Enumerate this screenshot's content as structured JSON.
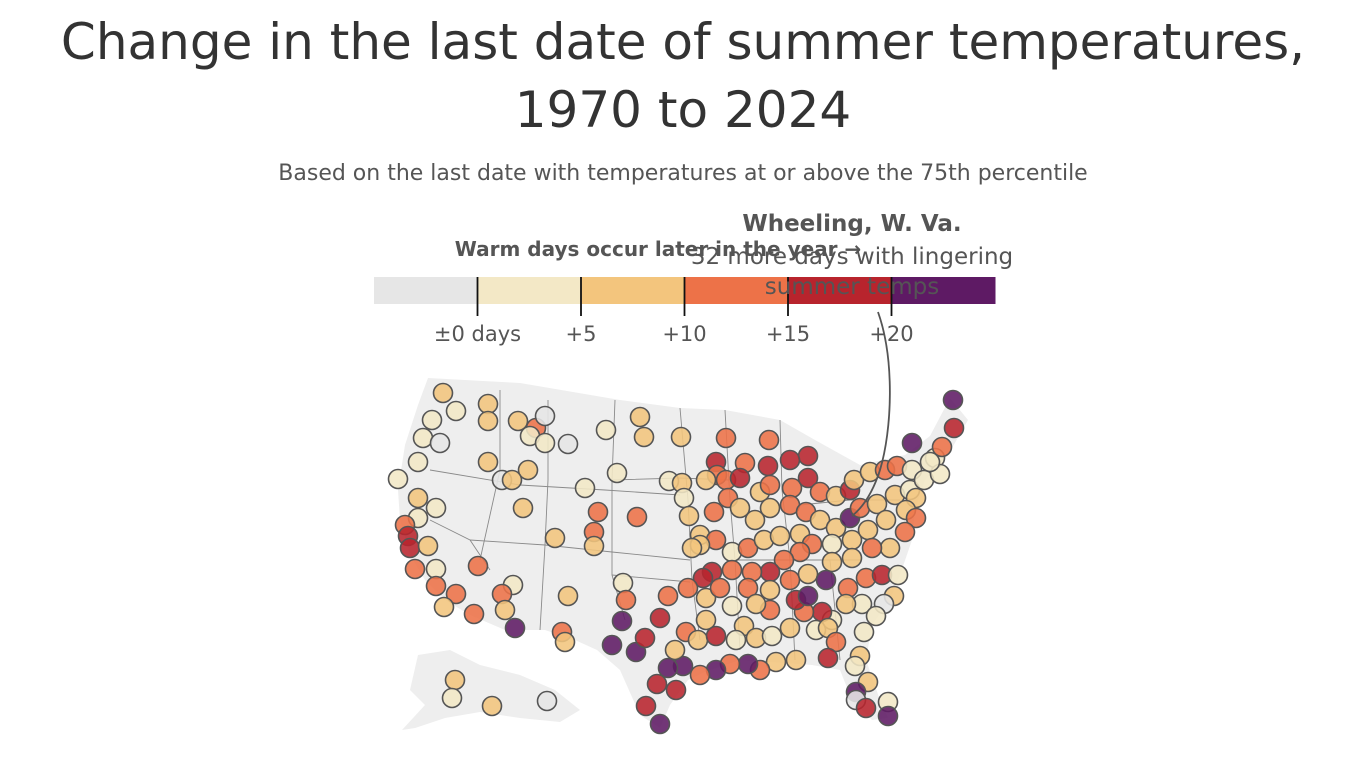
{
  "title": "Change in the last date of summer temperatures, 1970 to 2024",
  "subtitle": "Based on the last date with temperatures at or above the 75th percentile",
  "legend": {
    "header": "Warm days occur later in the year →",
    "ticks": [
      "±0 days",
      "+5",
      "+10",
      "+15",
      "+20"
    ],
    "bins": [
      {
        "range": "< 0",
        "color": "#e6e6e6"
      },
      {
        "range": "0 to 5",
        "color": "#f3e8c6"
      },
      {
        "range": "5 to 10",
        "color": "#f3c57d"
      },
      {
        "range": "10 to 15",
        "color": "#ed7248"
      },
      {
        "range": "15 to 20",
        "color": "#b8242d"
      },
      {
        "range": "20+",
        "color": "#5e1a64"
      }
    ]
  },
  "annotation": {
    "place": "Wheeling, W. Va.",
    "line1": "32 more days with lingering",
    "line2": "summer temps"
  },
  "colors": {
    "land": "#eeeeee",
    "borders": "#8a8a8a",
    "marker_stroke": "#555555"
  }
}
